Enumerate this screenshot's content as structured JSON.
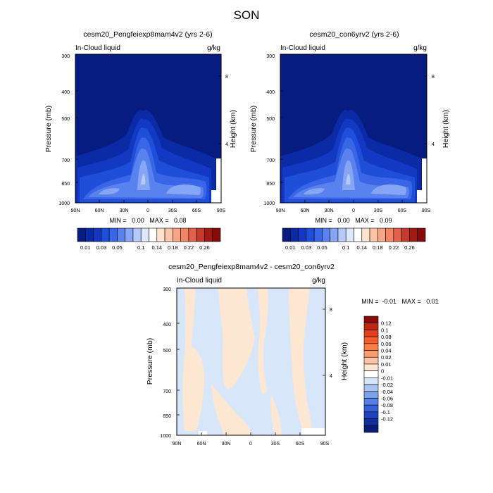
{
  "figure_title": "SON",
  "chart_data": [
    {
      "type": "heatmap",
      "title": "cesm20_Pengfeiexp8mam4v2 (yrs 2-6)",
      "subtitle_left": "In-Cloud liquid",
      "units": "g/kg",
      "ylabel": "Pressure (mb)",
      "ylabel_right": "Height (km)",
      "x_ticks": [
        "90N",
        "60N",
        "30N",
        "0",
        "30S",
        "60S",
        "90S"
      ],
      "y_ticks": [
        "300",
        "400",
        "500",
        "700",
        "850",
        "1000"
      ],
      "y_ticks_right": [
        "8",
        "4"
      ],
      "stats": "MIN =   0.00   MAX =   0.08",
      "colorbar_ticks": [
        "0.01",
        "0.03",
        "0.05",
        "0.1",
        "0.14",
        "0.18",
        "0.22",
        "0.26"
      ],
      "colorbar_colors": [
        "#061c80",
        "#0a2aa6",
        "#1238c4",
        "#1f4ed8",
        "#3966e6",
        "#5a82ef",
        "#86a6f5",
        "#b4c9fa",
        "#dde8fd",
        "#ffffff",
        "#ffe2cc",
        "#fcc5a8",
        "#f8a585",
        "#f18566",
        "#e3604a",
        "#c43a2b",
        "#a21b12",
        "#860b0a"
      ],
      "x_range": [
        90,
        -90
      ],
      "y_range": [
        1000,
        300
      ]
    },
    {
      "type": "heatmap",
      "title": "cesm20_con6yrv2 (yrs 2-6)",
      "subtitle_left": "In-Cloud liquid",
      "units": "g/kg",
      "ylabel": "Pressure (mb)",
      "ylabel_right": "Height (km)",
      "x_ticks": [
        "90N",
        "60N",
        "30N",
        "0",
        "30S",
        "60S",
        "90S"
      ],
      "y_ticks": [
        "300",
        "400",
        "500",
        "700",
        "850",
        "1000"
      ],
      "y_ticks_right": [
        "8",
        "4"
      ],
      "stats": "MIN =   0.00   MAX =   0.09",
      "colorbar_ticks": [
        "0.01",
        "0.03",
        "0.05",
        "0.1",
        "0.14",
        "0.18",
        "0.22",
        "0.26"
      ],
      "colorbar_colors": [
        "#061c80",
        "#0a2aa6",
        "#1238c4",
        "#1f4ed8",
        "#3966e6",
        "#5a82ef",
        "#86a6f5",
        "#b4c9fa",
        "#dde8fd",
        "#ffffff",
        "#ffe2cc",
        "#fcc5a8",
        "#f8a585",
        "#f18566",
        "#e3604a",
        "#c43a2b",
        "#a21b12",
        "#860b0a"
      ],
      "x_range": [
        90,
        -90
      ],
      "y_range": [
        1000,
        300
      ]
    },
    {
      "type": "heatmap",
      "title": "cesm20_Pengfeiexp8mam4v2 - cesm20_con6yrv2",
      "subtitle_left": "In-Cloud liquid",
      "units": "g/kg",
      "ylabel": "Pressure (mb)",
      "ylabel_right": "Height (km)",
      "x_ticks": [
        "90N",
        "60N",
        "30N",
        "0",
        "30S",
        "60S",
        "90S"
      ],
      "y_ticks": [
        "300",
        "400",
        "500",
        "700",
        "850",
        "1000"
      ],
      "y_ticks_right": [
        "8",
        "4"
      ],
      "stats": "MIN =  -0.01   MAX =   0.01",
      "colorbar_ticks": [
        "0.12",
        "0.1",
        "0.08",
        "0.06",
        "0.04",
        "0.02",
        "0.01",
        "0",
        "-0.01",
        "-0.02",
        "-0.04",
        "-0.06",
        "-0.08",
        "-0.1",
        "-0.12"
      ],
      "colorbar_colors": [
        "#8b0d0a",
        "#c0260f",
        "#e2401a",
        "#f65d2a",
        "#fa7c46",
        "#fb9c6c",
        "#fcc3a4",
        "#fde6d2",
        "#ffffff",
        "#d6e6fb",
        "#a9c4f4",
        "#7ca2ec",
        "#5480e4",
        "#3460d8",
        "#1e44c0",
        "#10309c",
        "#071d78"
      ],
      "x_range": [
        90,
        -90
      ],
      "y_range": [
        1000,
        300
      ]
    }
  ]
}
